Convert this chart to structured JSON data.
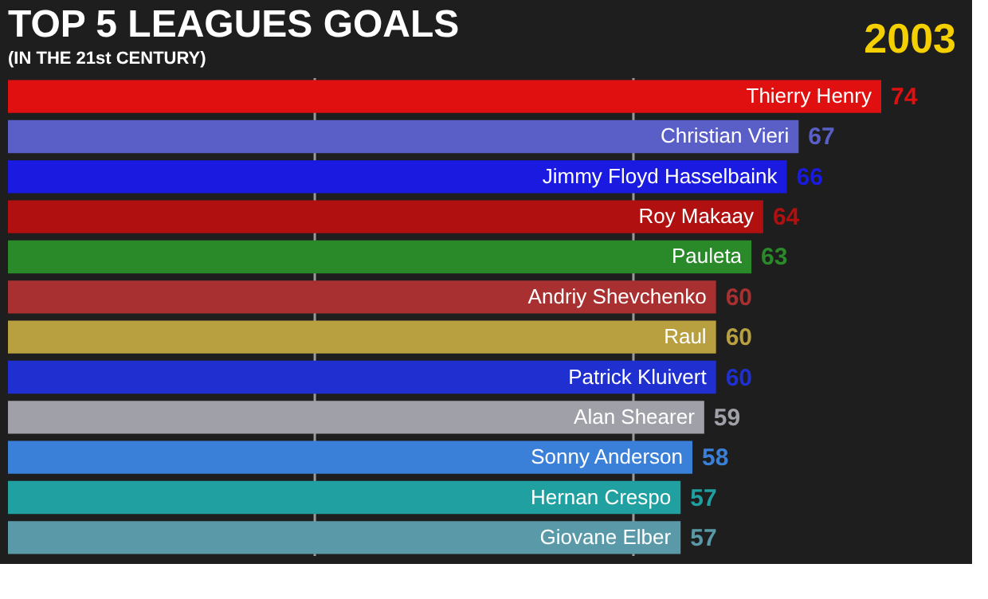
{
  "chart_data": {
    "type": "bar",
    "orientation": "horizontal",
    "title": "TOP 5 LEAGUES GOALS",
    "subtitle": "(IN THE 21st CENTURY)",
    "annotations": [
      "2003"
    ],
    "categories": [
      "Thierry Henry",
      "Christian Vieri",
      "Jimmy Floyd Hasselbaink",
      "Roy Makaay",
      "Pauleta",
      "Andriy Shevchenko",
      "Raul",
      "Patrick Kluivert",
      "Alan Shearer",
      "Sonny Anderson",
      "Hernan Crespo",
      "Giovane Elber"
    ],
    "values": [
      74,
      67,
      66,
      64,
      63,
      60,
      60,
      60,
      59,
      58,
      57,
      57
    ],
    "colors": [
      "#e01010",
      "#5a5fc8",
      "#1a1ae0",
      "#b01010",
      "#2a8a2a",
      "#a83030",
      "#b8a040",
      "#2030d0",
      "#a0a0a8",
      "#3a80d8",
      "#20a0a0",
      "#5a9aa8"
    ],
    "ref_lines": [
      {
        "axis": "x",
        "value": 26,
        "color": "#9a9a9a"
      },
      {
        "axis": "x",
        "value": 53,
        "color": "#9a9a9a"
      }
    ],
    "data_labels": true
  }
}
